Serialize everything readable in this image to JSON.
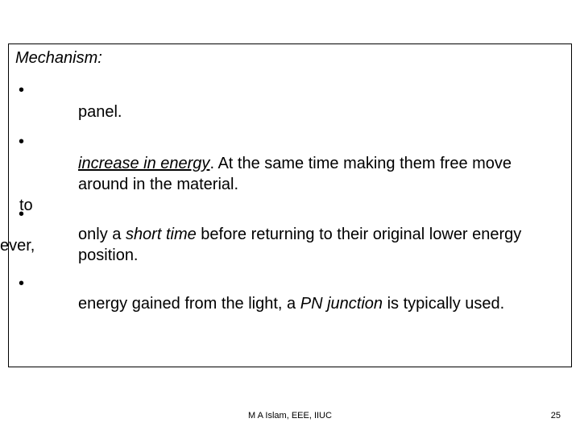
{
  "heading": "Mechanism:",
  "bullets": {
    "b1_line2": "panel.",
    "b2_line2_pre": "",
    "b2_italic_underline": "increase in energy",
    "b2_after": ". At the same time making them free move around in        the material.",
    "b3_pre": "only a ",
    "b3_italic": "short time",
    "b3_after": " before returning to their original lower energy position.",
    "b4_pre": "energy gained from the light, a ",
    "b4_italic": "PN junction",
    "b4_after": " is typically used."
  },
  "stray": {
    "to": "to",
    "ever": "ever,"
  },
  "footer": {
    "center": "M A Islam, EEE, IIUC",
    "page": "25"
  },
  "colors": {
    "text": "#000000",
    "background": "#ffffff",
    "border": "#000000"
  }
}
